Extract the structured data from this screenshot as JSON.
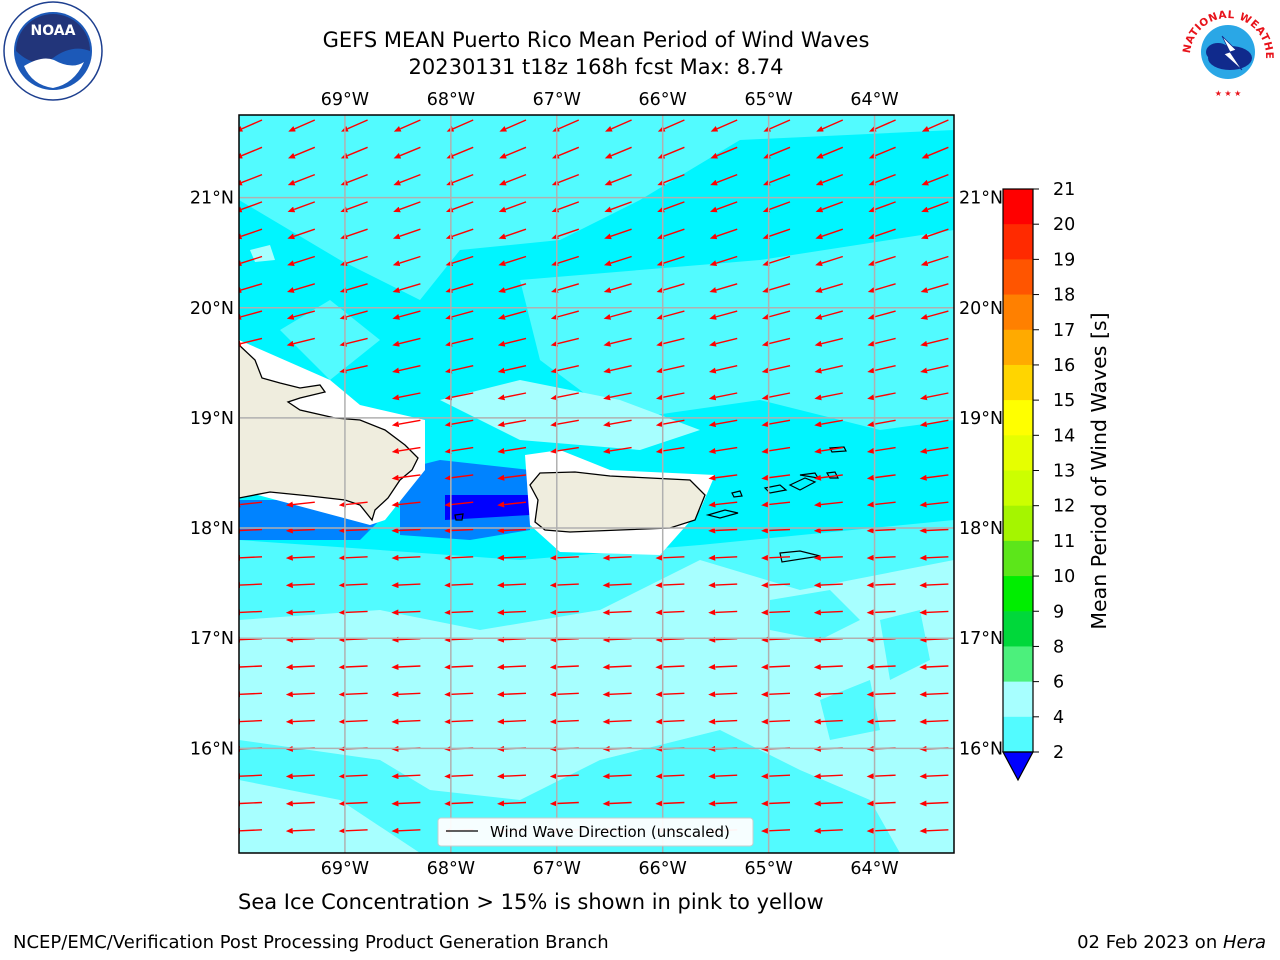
{
  "header": {
    "line1": "GEFS MEAN Puerto Rico Mean Period of Wind Waves",
    "line2": "20230131 t18z 168h fcst   Max: 8.74"
  },
  "logos": {
    "left": {
      "icon": "noaa-logo-icon",
      "text": "NOAA"
    },
    "right": {
      "icon": "nws-logo-icon",
      "text": "NATIONAL WEATHER SERVICE"
    }
  },
  "map": {
    "lon_labels": [
      "69°W",
      "68°W",
      "67°W",
      "66°W",
      "65°W",
      "64°W"
    ],
    "lat_labels": [
      "21°N",
      "20°N",
      "19°N",
      "18°N",
      "17°N",
      "16°N"
    ],
    "lon_values": [
      -69,
      -68,
      -67,
      -66,
      -65,
      -64
    ],
    "lat_values": [
      21,
      20,
      19,
      18,
      17,
      16
    ],
    "extent": {
      "lon": [
        -70,
        -63.25
      ],
      "lat": [
        15.05,
        21.75
      ]
    },
    "arrow_color": "#ff0000",
    "land_color": "#efedde",
    "legend_label": "Wind Wave Direction (unscaled)"
  },
  "colorbar": {
    "label": "Mean Period of Wind Waves [s]",
    "ticks": [
      "21",
      "20",
      "19",
      "18",
      "17",
      "16",
      "15",
      "14",
      "13",
      "12",
      "11",
      "10",
      "9",
      "8",
      "6",
      "4",
      "2"
    ],
    "colors": [
      "#ff0000",
      "#ff2a00",
      "#ff5500",
      "#ff8000",
      "#ffaa00",
      "#ffd500",
      "#ffff00",
      "#e6ff00",
      "#ccff00",
      "#a5f500",
      "#5ce61a",
      "#00ee00",
      "#00d83a",
      "#4cf07c",
      "#a7ffff",
      "#52fbff",
      "#00f5ff",
      "#0083ff"
    ],
    "extend_color": "#0000ff"
  },
  "bottom_note": "Sea Ice Concentration > 15% is shown in pink to yellow",
  "footer": {
    "left": "NCEP/EMC/Verification Post Processing Product Generation Branch",
    "right_date": "02 Feb 2023 on ",
    "right_machine": "Hera"
  }
}
